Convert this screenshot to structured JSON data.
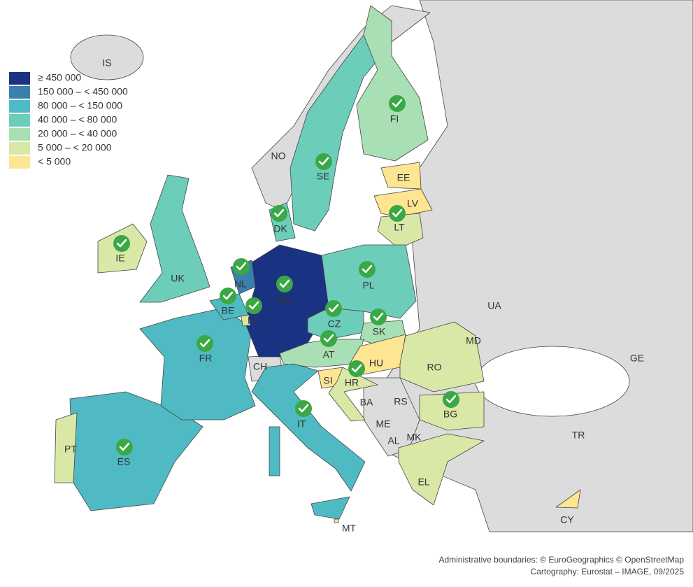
{
  "legend": {
    "items": [
      {
        "label": "≥ 450 000",
        "color": "#1a3282"
      },
      {
        "label": "150 000 – < 450 000",
        "color": "#3a80ad"
      },
      {
        "label": "80 000 – < 150 000",
        "color": "#4fbac3"
      },
      {
        "label": "40 000 – < 80 000",
        "color": "#6ccdbb"
      },
      {
        "label": "20 000 – < 40 000",
        "color": "#a8dfb4"
      },
      {
        "label": "5 000 – < 20 000",
        "color": "#d9e8a6"
      },
      {
        "label": "< 5 000",
        "color": "#fde592"
      }
    ]
  },
  "countries": [
    "IS",
    "NO",
    "SE",
    "FI",
    "EE",
    "LV",
    "LT",
    "DK",
    "IE",
    "UK",
    "NL",
    "DE",
    "PL",
    "BE",
    "LU",
    "CZ",
    "SK",
    "UA",
    "MD",
    "FR",
    "AT",
    "HU",
    "CH",
    "RO",
    "GE",
    "SI",
    "HR",
    "BA",
    "RS",
    "BG",
    "ME",
    "AL",
    "MK",
    "IT",
    "PT",
    "ES",
    "TR",
    "EL",
    "CY",
    "MT"
  ],
  "credits": [
    "Administrative boundaries: © EuroGeographics © OpenStreetMap",
    "Cartography: Eurostat – IMAGE, 09/2025"
  ]
}
